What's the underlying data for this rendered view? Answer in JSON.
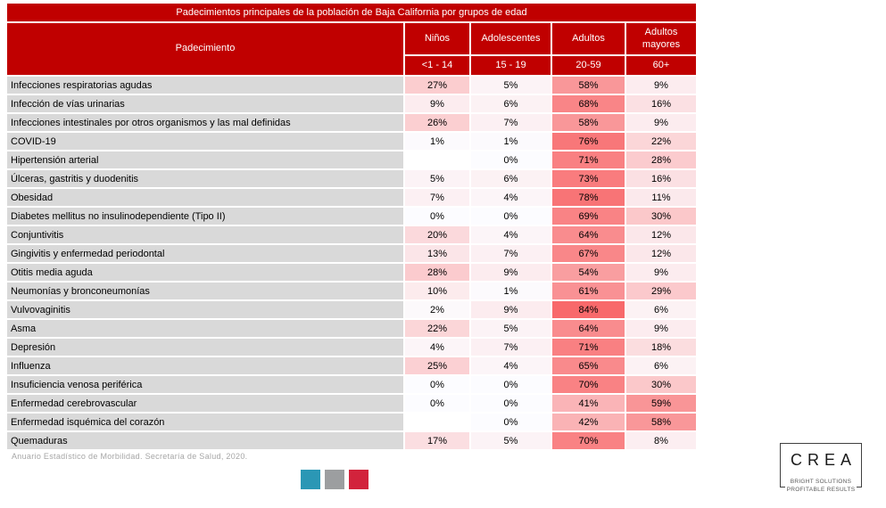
{
  "colors": {
    "header_bg": "#C00000",
    "header_text": "#FFFFFF",
    "row_label_bg": "#D9D9D9",
    "source_text": "#A6A6A6"
  },
  "chart_data": {
    "type": "heatmap",
    "title": "Padecimientos principales de la población de Baja California por grupos de edad",
    "row_header": "Padecimiento",
    "unit": "%",
    "column_groups": [
      {
        "label": "Niños",
        "range": "<1 - 14"
      },
      {
        "label": "Adolescentes",
        "range": "15 - 19"
      },
      {
        "label": "Adultos",
        "range": "20-59"
      },
      {
        "label": "Adultos mayores",
        "range": "60+"
      }
    ],
    "scale": {
      "min": 0,
      "max": 84,
      "min_color": "#FCFCFF",
      "max_color": "#F8696B",
      "empty_color": "#FFFFFF"
    },
    "rows": [
      {
        "label": "Infecciones respiratorias agudas",
        "values": [
          27,
          5,
          58,
          9
        ]
      },
      {
        "label": "Infección de vías urinarias",
        "values": [
          9,
          6,
          68,
          16
        ]
      },
      {
        "label": "Infecciones intestinales por otros organismos y las mal definidas",
        "values": [
          26,
          7,
          58,
          9
        ]
      },
      {
        "label": "COVID-19",
        "values": [
          1,
          1,
          76,
          22
        ]
      },
      {
        "label": "Hipertensión arterial",
        "values": [
          null,
          0,
          71,
          28
        ]
      },
      {
        "label": "Úlceras, gastritis y duodenitis",
        "values": [
          5,
          6,
          73,
          16
        ]
      },
      {
        "label": "Obesidad",
        "values": [
          7,
          4,
          78,
          11
        ]
      },
      {
        "label": "Diabetes mellitus no insulinodependiente (Tipo II)",
        "values": [
          0,
          0,
          69,
          30
        ]
      },
      {
        "label": "Conjuntivitis",
        "values": [
          20,
          4,
          64,
          12
        ]
      },
      {
        "label": "Gingivitis y enfermedad periodontal",
        "values": [
          13,
          7,
          67,
          12
        ]
      },
      {
        "label": "Otitis media aguda",
        "values": [
          28,
          9,
          54,
          9
        ]
      },
      {
        "label": "Neumonías y bronconeumonías",
        "values": [
          10,
          1,
          61,
          29
        ]
      },
      {
        "label": "Vulvovaginitis",
        "values": [
          2,
          9,
          84,
          6
        ]
      },
      {
        "label": "Asma",
        "values": [
          22,
          5,
          64,
          9
        ]
      },
      {
        "label": "Depresión",
        "values": [
          4,
          7,
          71,
          18
        ]
      },
      {
        "label": "Influenza",
        "values": [
          25,
          4,
          65,
          6
        ]
      },
      {
        "label": "Insuficiencia venosa periférica",
        "values": [
          0,
          0,
          70,
          30
        ]
      },
      {
        "label": "Enfermedad cerebrovascular",
        "values": [
          0,
          0,
          41,
          59
        ]
      },
      {
        "label": "Enfermedad isquémica del corazón",
        "values": [
          null,
          0,
          42,
          58
        ]
      },
      {
        "label": "Quemaduras",
        "values": [
          17,
          5,
          70,
          8
        ]
      }
    ]
  },
  "footer": {
    "source": "Anuario Estadístico de Morbilidad. Secretaría de Salud, 2020.",
    "squares": [
      {
        "name": "teal-square",
        "color": "#2B97B5"
      },
      {
        "name": "gray-square",
        "color": "#9C9EA0"
      },
      {
        "name": "crimson-square",
        "color": "#D2233C"
      }
    ]
  },
  "logo": {
    "name": "CREA",
    "tagline1": "BRIGHT SOLUTIONS",
    "tagline2": "PROFITABLE RESULTS"
  }
}
